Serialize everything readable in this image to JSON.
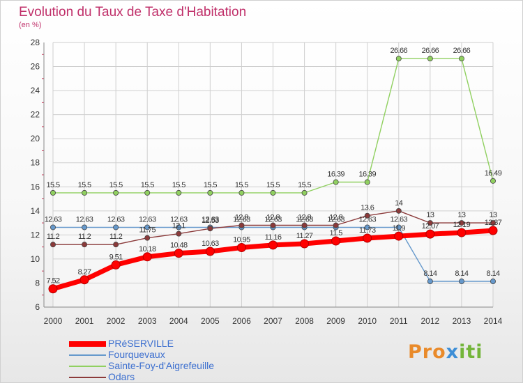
{
  "chart_data": {
    "type": "line",
    "title": "Evolution du Taux de Taxe d'Habitation",
    "subtitle": "(en %)",
    "x": [
      "2000",
      "2001",
      "2002",
      "2003",
      "2004",
      "2005",
      "2006",
      "2007",
      "2008",
      "2009",
      "2010",
      "2011",
      "2012",
      "2013",
      "2014"
    ],
    "ylim": [
      6,
      28
    ],
    "yticks": [
      "6",
      "8",
      "10",
      "12",
      "14",
      "16",
      "18",
      "20",
      "22",
      "24",
      "26",
      "28"
    ],
    "grid": true,
    "legend_position": "bottom-left",
    "series": [
      {
        "name": "Sainte-Foy-d'Aigrefeuille",
        "color": "#90d060",
        "values": [
          15.5,
          15.5,
          15.5,
          15.5,
          15.5,
          15.5,
          15.5,
          15.5,
          15.5,
          16.39,
          16.39,
          26.66,
          26.66,
          26.66,
          16.49
        ],
        "labels": [
          "15.5",
          "15.5",
          "15.5",
          "15.5",
          "15.5",
          "15.5",
          "15.5",
          "15.5",
          "15.5",
          "16.39",
          "16.39",
          "26.66",
          "26.66",
          "26.66",
          "16.49"
        ]
      },
      {
        "name": "Fourquevaux",
        "color": "#6699cc",
        "values": [
          12.63,
          12.63,
          12.63,
          12.63,
          12.63,
          12.63,
          12.63,
          12.63,
          12.63,
          12.63,
          12.63,
          12.63,
          8.14,
          8.14,
          8.14
        ],
        "labels": [
          "12.63",
          "12.63",
          "12.63",
          "12.63",
          "12.63",
          "12.63",
          "12.63",
          "12.63",
          "12.63",
          "12.63",
          "12.63",
          "12.63",
          "8.14",
          "8.14",
          "8.14"
        ]
      },
      {
        "name": "Odars",
        "color": "#8b3a3a",
        "values": [
          11.2,
          11.2,
          11.2,
          11.75,
          12.1,
          12.53,
          12.8,
          12.8,
          12.8,
          12.8,
          13.6,
          14,
          13,
          13,
          13
        ],
        "labels": [
          "11.2",
          "11.2",
          "11.2",
          "11.75",
          "12.1",
          "12.53",
          "12.8",
          "12.8",
          "12.8",
          "12.8",
          "13.6",
          "14",
          "13",
          "13",
          "13"
        ]
      },
      {
        "name": "PRéSERVILLE",
        "color": "#ff0000",
        "values": [
          7.52,
          8.27,
          9.51,
          10.18,
          10.48,
          10.63,
          10.95,
          11.16,
          11.27,
          11.5,
          11.73,
          11.9,
          12.07,
          12.19,
          12.37
        ],
        "labels": [
          "7.52",
          "8.27",
          "9.51",
          "10.18",
          "10.48",
          "10.63",
          "10.95",
          "11.16",
          "11.27",
          "11.5",
          "11.73",
          "11.9",
          "12.07",
          "12.19",
          "12.37"
        ]
      }
    ],
    "legend": [
      {
        "name": "PRéSERVILLE",
        "color": "#ff0000"
      },
      {
        "name": "Fourquevaux",
        "color": "#6699cc"
      },
      {
        "name": "Sainte-Foy-d'Aigrefeuille",
        "color": "#90d060"
      },
      {
        "name": "Odars",
        "color": "#8b3a3a"
      }
    ]
  },
  "logo": {
    "part1": "Pro",
    "part2": "x",
    "part3": "iti"
  }
}
